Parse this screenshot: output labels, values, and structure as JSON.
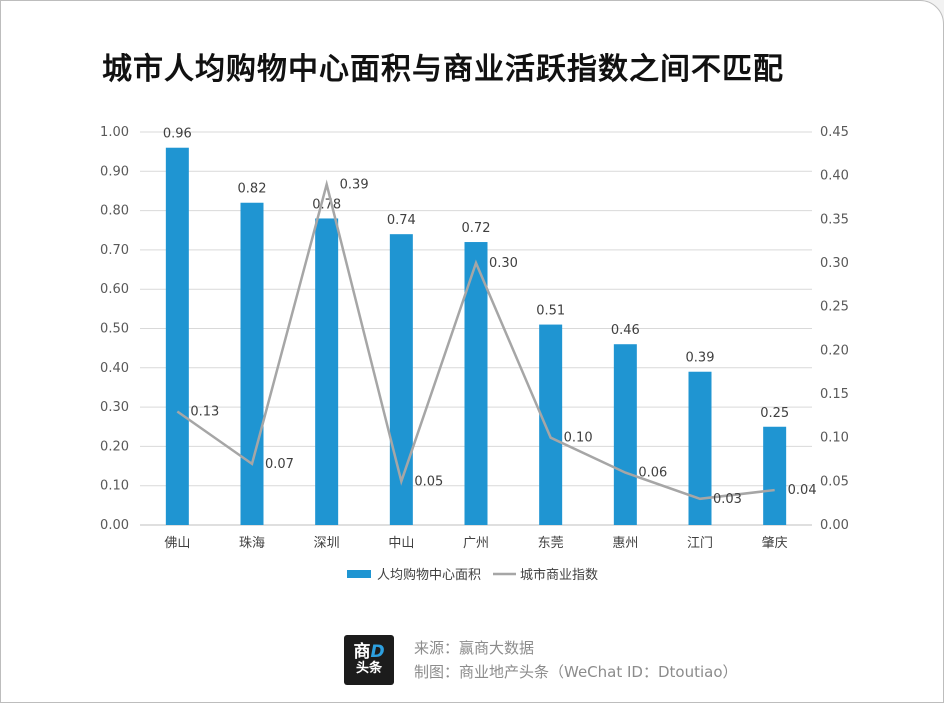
{
  "title": "城市人均购物中心面积与商业活跃指数之间不匹配",
  "chart_data": {
    "type": "bar+line",
    "categories": [
      "佛山",
      "珠海",
      "深圳",
      "中山",
      "广州",
      "东莞",
      "惠州",
      "江门",
      "肇庆"
    ],
    "series": [
      {
        "name": "人均购物中心面积",
        "type": "bar",
        "axis": "left",
        "color": "#1f95d2",
        "values": [
          0.96,
          0.82,
          0.78,
          0.74,
          0.72,
          0.51,
          0.46,
          0.39,
          0.25
        ],
        "labels": [
          "0.96",
          "0.82",
          "0.78",
          "0.74",
          "0.72",
          "0.51",
          "0.46",
          "0.39",
          "0.25"
        ]
      },
      {
        "name": "城市商业指数",
        "type": "line",
        "axis": "right",
        "color": "#a6a6a6",
        "values": [
          0.13,
          0.07,
          0.39,
          0.05,
          0.3,
          0.1,
          0.06,
          0.03,
          0.04
        ],
        "labels": [
          "0.13",
          "0.07",
          "0.39",
          "0.05",
          "0.30",
          "0.10",
          "0.06",
          "0.03",
          "0.04"
        ]
      }
    ],
    "left_axis": {
      "min": 0,
      "max": 1.0,
      "ticks": [
        "0.00",
        "0.10",
        "0.20",
        "0.30",
        "0.40",
        "0.50",
        "0.60",
        "0.70",
        "0.80",
        "0.90",
        "1.00"
      ]
    },
    "right_axis": {
      "min": 0,
      "max": 0.45,
      "ticks": [
        "0.00",
        "0.05",
        "0.10",
        "0.15",
        "0.20",
        "0.25",
        "0.30",
        "0.35",
        "0.40",
        "0.45"
      ]
    },
    "grid": true,
    "legend_position": "bottom"
  },
  "footer": {
    "logo_line1_a": "商",
    "logo_line1_b": "D",
    "logo_line2": "头条",
    "source": "来源：赢商大数据",
    "credit": "制图：商业地产头条（WeChat ID：Dtoutiao）"
  }
}
